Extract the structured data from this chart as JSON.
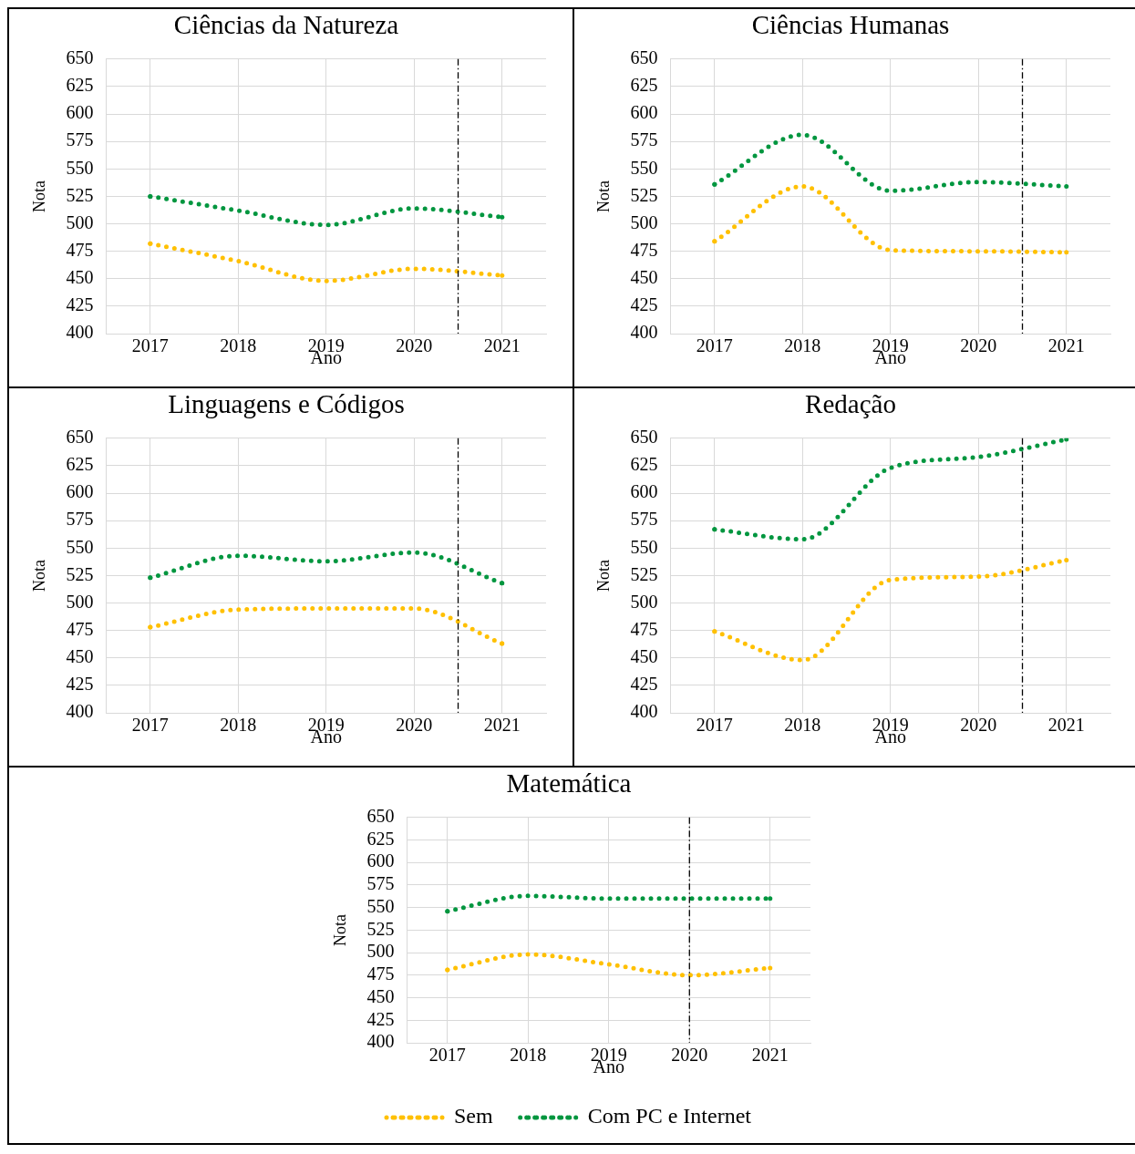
{
  "chart_data": [
    {
      "type": "line",
      "title": "Ciências da Natureza",
      "xlabel": "Ano",
      "ylabel": "Nota",
      "x": [
        2017,
        2018,
        2019,
        2020,
        2021
      ],
      "xlim": [
        2016.5,
        2021.5
      ],
      "xticks": [
        2017,
        2018,
        2019,
        2020,
        2021
      ],
      "ylim": [
        400,
        650
      ],
      "yticks": [
        400,
        425,
        450,
        475,
        500,
        525,
        550,
        575,
        600,
        625,
        650
      ],
      "grid": true,
      "legend": false,
      "marker": "none",
      "line_style": "dotted",
      "series": [
        {
          "color": "#ffc000",
          "values": [
            482,
            466,
            448,
            459,
            453
          ]
        },
        {
          "color": "#00963f",
          "values": [
            525,
            512,
            499,
            514,
            506
          ]
        }
      ],
      "ref_lines": [
        {
          "axis": "x",
          "value": 2020.5,
          "color": "#000000"
        }
      ]
    },
    {
      "type": "line",
      "title": "Ciências Humanas",
      "xlabel": "Ano",
      "ylabel": "Nota",
      "x": [
        2017,
        2018,
        2019,
        2020,
        2021
      ],
      "xlim": [
        2016.5,
        2021.5
      ],
      "xticks": [
        2017,
        2018,
        2019,
        2020,
        2021
      ],
      "ylim": [
        400,
        650
      ],
      "yticks": [
        400,
        425,
        450,
        475,
        500,
        525,
        550,
        575,
        600,
        625,
        650
      ],
      "grid": true,
      "legend": false,
      "marker": "none",
      "line_style": "dotted",
      "series": [
        {
          "color": "#ffc000",
          "values": [
            484,
            534,
            476,
            475,
            474
          ]
        },
        {
          "color": "#00963f",
          "values": [
            536,
            581,
            530,
            538,
            534
          ]
        }
      ],
      "ref_lines": [
        {
          "axis": "x",
          "value": 2020.5,
          "color": "#000000"
        }
      ]
    },
    {
      "type": "line",
      "title": "Linguagens e Códigos",
      "xlabel": "Ano",
      "ylabel": "Nota",
      "x": [
        2017,
        2018,
        2019,
        2020,
        2021
      ],
      "xlim": [
        2016.5,
        2021.5
      ],
      "xticks": [
        2017,
        2018,
        2019,
        2020,
        2021
      ],
      "ylim": [
        400,
        650
      ],
      "yticks": [
        400,
        425,
        450,
        475,
        500,
        525,
        550,
        575,
        600,
        625,
        650
      ],
      "grid": true,
      "legend": false,
      "marker": "none",
      "line_style": "dotted",
      "series": [
        {
          "color": "#ffc000",
          "values": [
            478,
            494,
            495,
            495,
            463
          ]
        },
        {
          "color": "#00963f",
          "values": [
            523,
            543,
            538,
            546,
            518
          ]
        }
      ],
      "ref_lines": [
        {
          "axis": "x",
          "value": 2020.5,
          "color": "#000000"
        }
      ]
    },
    {
      "type": "line",
      "title": "Redação",
      "xlabel": "Ano",
      "ylabel": "Nota",
      "x": [
        2017,
        2018,
        2019,
        2020,
        2021
      ],
      "xlim": [
        2016.5,
        2021.5
      ],
      "xticks": [
        2017,
        2018,
        2019,
        2020,
        2021
      ],
      "ylim": [
        400,
        650
      ],
      "yticks": [
        400,
        425,
        450,
        475,
        500,
        525,
        550,
        575,
        600,
        625,
        650
      ],
      "grid": true,
      "legend": false,
      "marker": "none",
      "line_style": "dotted",
      "series": [
        {
          "color": "#ffc000",
          "values": [
            474,
            448,
            521,
            524,
            539
          ]
        },
        {
          "color": "#00963f",
          "values": [
            567,
            558,
            623,
            633,
            649
          ]
        }
      ],
      "ref_lines": [
        {
          "axis": "x",
          "value": 2020.5,
          "color": "#000000"
        }
      ]
    },
    {
      "type": "line",
      "title": "Matemática",
      "xlabel": "Ano",
      "ylabel": "Nota",
      "x": [
        2017,
        2018,
        2019,
        2020,
        2021
      ],
      "xlim": [
        2016.5,
        2021.5
      ],
      "xticks": [
        2017,
        2018,
        2019,
        2020,
        2021
      ],
      "ylim": [
        400,
        650
      ],
      "yticks": [
        400,
        425,
        450,
        475,
        500,
        525,
        550,
        575,
        600,
        625,
        650
      ],
      "grid": true,
      "legend": "bottom",
      "marker": "none",
      "line_style": "dotted",
      "series": [
        {
          "name": "Sem",
          "color": "#ffc000",
          "values": [
            481,
            498,
            487,
            475,
            483
          ]
        },
        {
          "name": "Com PC e Internet",
          "color": "#00963f",
          "values": [
            546,
            563,
            560,
            560,
            560
          ]
        }
      ],
      "ref_lines": [
        {
          "axis": "x",
          "value": 2020,
          "color": "#000000"
        }
      ]
    }
  ]
}
